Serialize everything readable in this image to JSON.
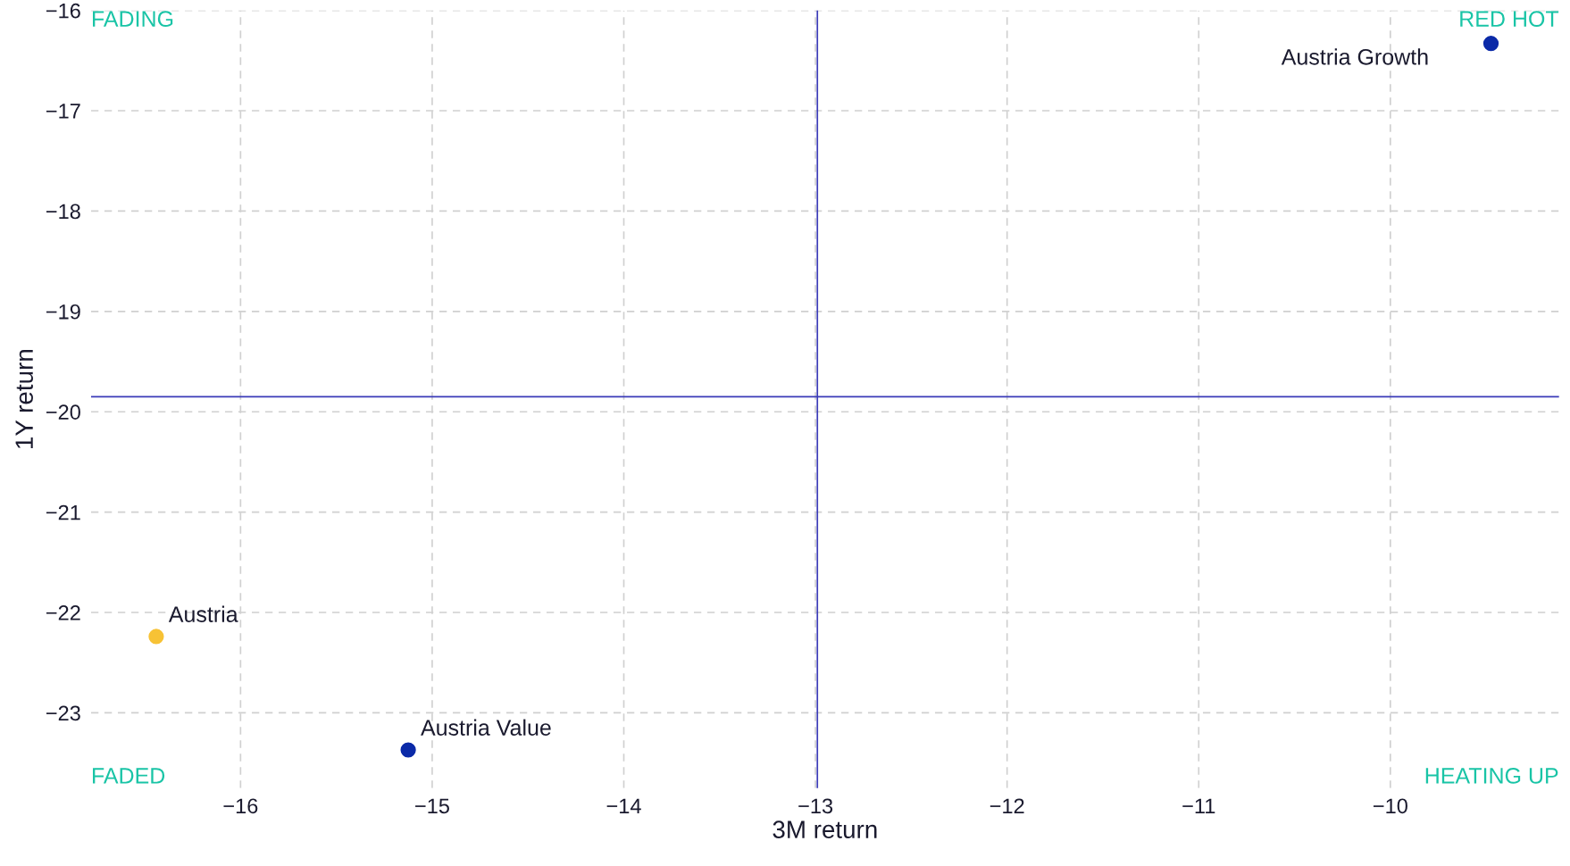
{
  "chart_data": {
    "type": "scatter",
    "xlabel": "3M return",
    "ylabel": "1Y return",
    "x": [
      -9.475,
      -16.44,
      -15.125
    ],
    "values": [
      -16.33,
      -22.24,
      -23.37
    ],
    "colors": [
      "#0b2aa8",
      "#f7c235",
      "#0b2aa8"
    ],
    "marker": "circle",
    "xlim": [
      -16.78,
      -9.12
    ],
    "xticks": [
      -16,
      -15,
      -14,
      -13,
      -12,
      -11,
      -10
    ],
    "ylim": [
      -23.75,
      -16
    ],
    "yticks": [
      -23,
      -22,
      -21,
      -20,
      -19,
      -18,
      -17,
      -16
    ],
    "grid": true,
    "ref_lines": [
      {
        "axis": "x",
        "value": -12.99,
        "color": "#3a3ab8"
      },
      {
        "axis": "y",
        "value": -19.85,
        "color": "#3a3ab8"
      }
    ],
    "annotations": [
      "FADING",
      "RED HOT",
      "FADED",
      "HEATING UP",
      {
        "text": "Austria Growth",
        "x": -9.475,
        "y": -16.33
      },
      {
        "text": "Austria",
        "x": -16.44,
        "y": -22.24
      },
      {
        "text": "Austria Value",
        "x": -15.125,
        "y": -23.37
      }
    ]
  }
}
